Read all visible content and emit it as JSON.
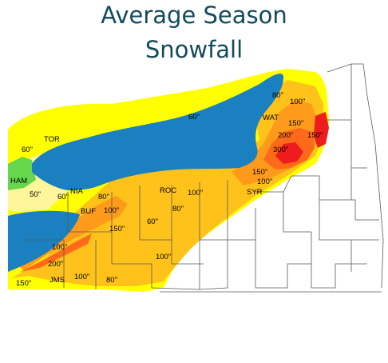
{
  "title": {
    "line1": "Average Season",
    "line2": "Snowfall"
  },
  "colors": {
    "water": "#1a80c0",
    "band_60": "#ffff00",
    "band_50_light": "#fff59a",
    "band_west": "#66d64d",
    "band_100": "#ffc21a",
    "band_150": "#ff9a1a",
    "band_200": "#ff6a1a",
    "band_300": "#ee1c1c",
    "county_lines": "#5a5a5a",
    "title": "#134a5c"
  },
  "cities": [
    {
      "id": "tor",
      "label": "TOR"
    },
    {
      "id": "ham",
      "label": "HAM"
    },
    {
      "id": "nia",
      "label": "NIA"
    },
    {
      "id": "buf",
      "label": "BUF"
    },
    {
      "id": "roc",
      "label": "ROC"
    },
    {
      "id": "wat",
      "label": "WAT"
    },
    {
      "id": "syr",
      "label": "SYR"
    },
    {
      "id": "jms",
      "label": "JMS"
    }
  ],
  "contour_labels": [
    {
      "id": "v60-tor",
      "value": "60\""
    },
    {
      "id": "v50-ham",
      "value": "50\""
    },
    {
      "id": "v60-nia",
      "value": "60\""
    },
    {
      "id": "v60-lake",
      "value": "60\""
    },
    {
      "id": "v80-ne",
      "value": "80\""
    },
    {
      "id": "v100-ne",
      "value": "100\""
    },
    {
      "id": "v150-wat",
      "value": "150\""
    },
    {
      "id": "v200-tug",
      "value": "200\""
    },
    {
      "id": "v300-tug",
      "value": "300\""
    },
    {
      "id": "v150-east",
      "value": "150\""
    },
    {
      "id": "v150-syrw",
      "value": "150\""
    },
    {
      "id": "v100-syr",
      "value": "100\""
    },
    {
      "id": "v100-roc",
      "value": "100\""
    },
    {
      "id": "v80-roc",
      "value": "80\""
    },
    {
      "id": "v80-buf",
      "value": "80\""
    },
    {
      "id": "v100-buf",
      "value": "100\""
    },
    {
      "id": "v150-buf",
      "value": "150\""
    },
    {
      "id": "v60-fing",
      "value": "60\""
    },
    {
      "id": "v100-fing",
      "value": "100\""
    },
    {
      "id": "v100-sw",
      "value": "100\""
    },
    {
      "id": "v200-sw",
      "value": "200\""
    },
    {
      "id": "v150-sw",
      "value": "150\""
    },
    {
      "id": "v100-jms",
      "value": "100\""
    },
    {
      "id": "v80-jms",
      "value": "80\""
    }
  ]
}
